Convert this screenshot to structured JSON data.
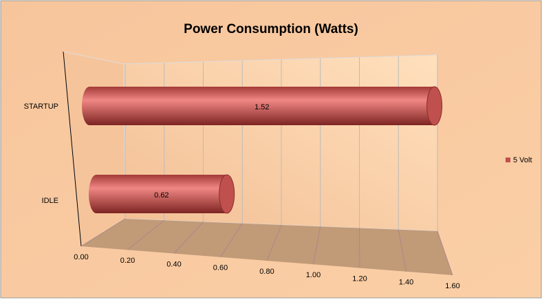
{
  "chart_data": {
    "type": "bar3d",
    "title": "Power Consumption (Watts)",
    "categories": [
      "STARTUP",
      "IDLE"
    ],
    "series": [
      {
        "name": "5 Volt",
        "color": "#c0504d",
        "values": [
          1.52,
          0.62
        ]
      }
    ],
    "xlim": [
      0,
      1.6
    ],
    "xticks": [
      {
        "value": 0,
        "label": "0.00"
      },
      {
        "value": 0.2,
        "label": "0.20"
      },
      {
        "value": 0.4,
        "label": "0.40"
      },
      {
        "value": 0.6,
        "label": "0.60"
      },
      {
        "value": 0.8,
        "label": "0.80"
      },
      {
        "value": 1,
        "label": "1.00"
      },
      {
        "value": 1.2,
        "label": "1.20"
      },
      {
        "value": 1.4,
        "label": "1.40"
      },
      {
        "value": 1.6,
        "label": "1.60"
      }
    ],
    "grid": true,
    "legend": "right"
  }
}
